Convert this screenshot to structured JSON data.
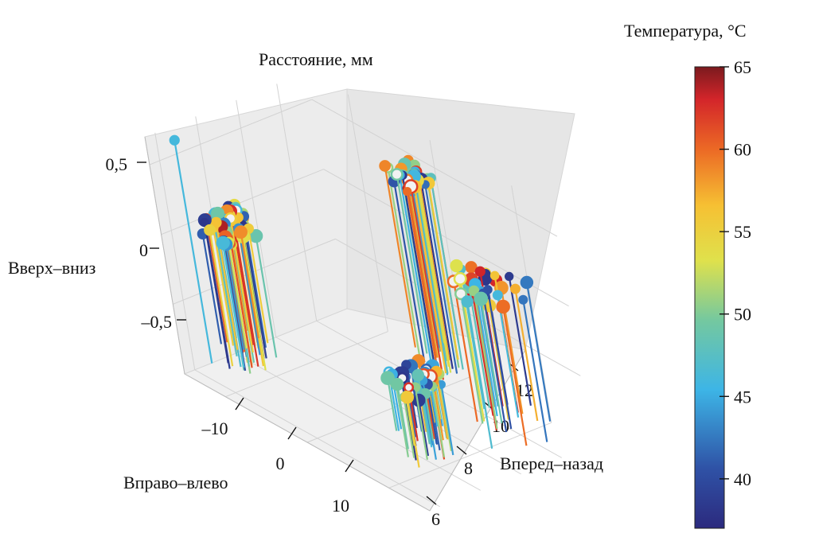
{
  "chart_data": {
    "type": "scatter3d-stem",
    "title": "Расстояние, мм",
    "axes": {
      "x": {
        "label": "Вправо–влево",
        "ticks": [
          -10,
          0,
          10
        ],
        "tick_labels": [
          "–10",
          "0",
          "10"
        ],
        "range": [
          -15,
          15
        ]
      },
      "y": {
        "label": "Вперед–назад",
        "ticks": [
          6,
          8,
          10,
          12
        ],
        "tick_labels": [
          "6",
          "8",
          "10",
          "12"
        ],
        "range": [
          5.5,
          13.5
        ]
      },
      "z": {
        "label": "Вверх–вниз",
        "ticks": [
          0.5,
          0,
          -0.5
        ],
        "tick_labels": [
          "0,5",
          "0",
          "–0,5"
        ],
        "range": [
          -1.0,
          0.7
        ]
      }
    },
    "colorbar": {
      "label": "Температура, °C",
      "range": [
        37,
        65
      ],
      "ticks": [
        65,
        60,
        55,
        50,
        45,
        40
      ],
      "tick_labels": [
        "65",
        "60",
        "55",
        "50",
        "45",
        "40"
      ]
    },
    "clusters": [
      {
        "name": "",
        "x_center": -12,
        "y_center": 7.5,
        "z_center": 0.05,
        "x_spread": 1.6,
        "y_spread": 0.9,
        "z_spread": 0.09,
        "count": 55,
        "z_base": -1.0
      },
      {
        "name": "",
        "x_center": -2,
        "y_center": 13.0,
        "z_center": 0.4,
        "x_spread": 1.8,
        "y_spread": 0.6,
        "z_spread": 0.05,
        "count": 35,
        "z_base": -1.0
      },
      {
        "name": "",
        "x_center": 10,
        "y_center": 11.5,
        "z_center": 0.1,
        "x_spread": 3.0,
        "y_spread": 1.2,
        "z_spread": 0.1,
        "count": 30,
        "z_base": -1.0
      },
      {
        "name": "",
        "x_center": 8,
        "y_center": 8.2,
        "z_center": -0.45,
        "x_spread": 1.6,
        "y_spread": 0.9,
        "z_spread": 0.09,
        "count": 45,
        "z_base": -1.0
      }
    ],
    "outliers": [
      {
        "x": -14,
        "y": 6.5,
        "z": 0.65,
        "t": 46
      }
    ],
    "grid": true
  }
}
